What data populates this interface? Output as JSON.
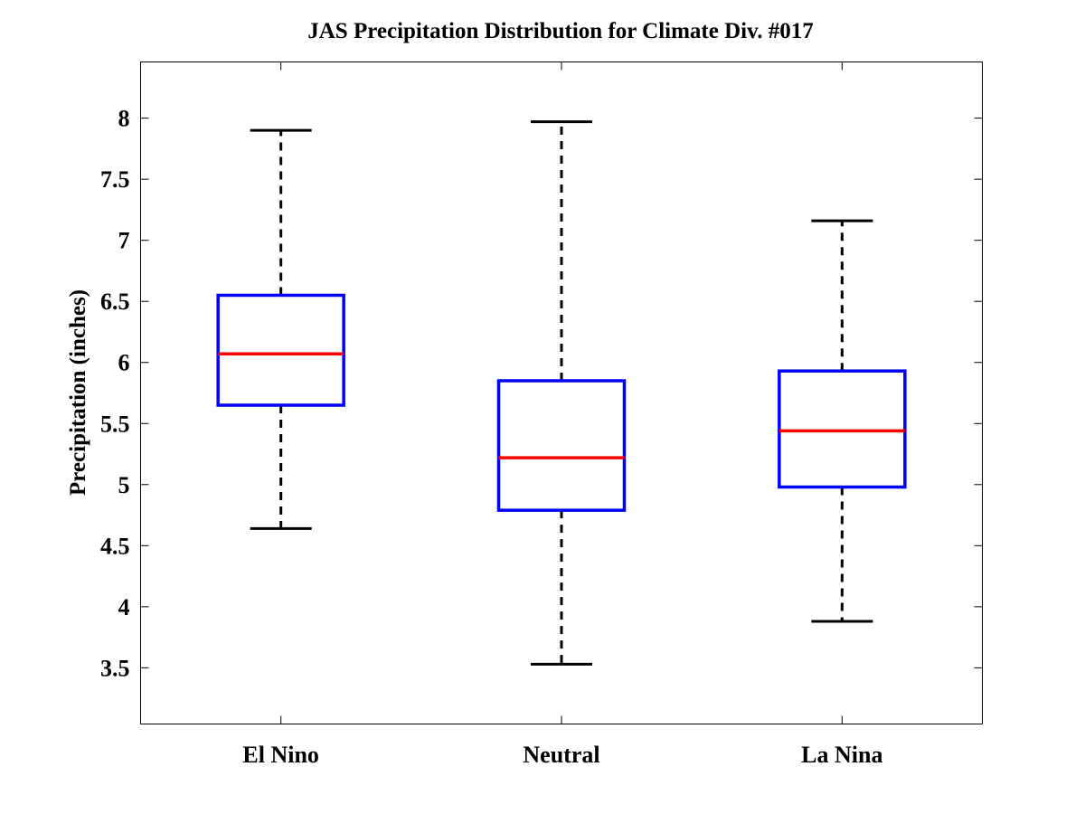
{
  "chart_data": {
    "type": "boxplot",
    "title": "JAS Precipitation Distribution for Climate Div. #017",
    "xlabel": "",
    "ylabel": "Precipitation (inches)",
    "ylim": [
      3.04,
      8.46
    ],
    "yticks": [
      3.5,
      4,
      4.5,
      5,
      5.5,
      6,
      6.5,
      7,
      7.5,
      8
    ],
    "ytick_labels": [
      "3.5",
      "4",
      "4.5",
      "5",
      "5.5",
      "6",
      "6.5",
      "7",
      "7.5",
      "8"
    ],
    "categories": [
      "El Nino",
      "Neutral",
      "La Nina"
    ],
    "boxes": [
      {
        "name": "El Nino",
        "whisker_low": 4.64,
        "q1": 5.65,
        "median": 6.07,
        "q3": 6.55,
        "whisker_high": 7.9
      },
      {
        "name": "Neutral",
        "whisker_low": 3.53,
        "q1": 4.79,
        "median": 5.22,
        "q3": 5.85,
        "whisker_high": 7.97
      },
      {
        "name": "La Nina",
        "whisker_low": 3.88,
        "q1": 4.98,
        "median": 5.44,
        "q3": 5.93,
        "whisker_high": 7.16
      }
    ],
    "colors": {
      "box": "#0000ff",
      "median": "#ff0000",
      "whisker": "#000000"
    },
    "grid": false
  }
}
